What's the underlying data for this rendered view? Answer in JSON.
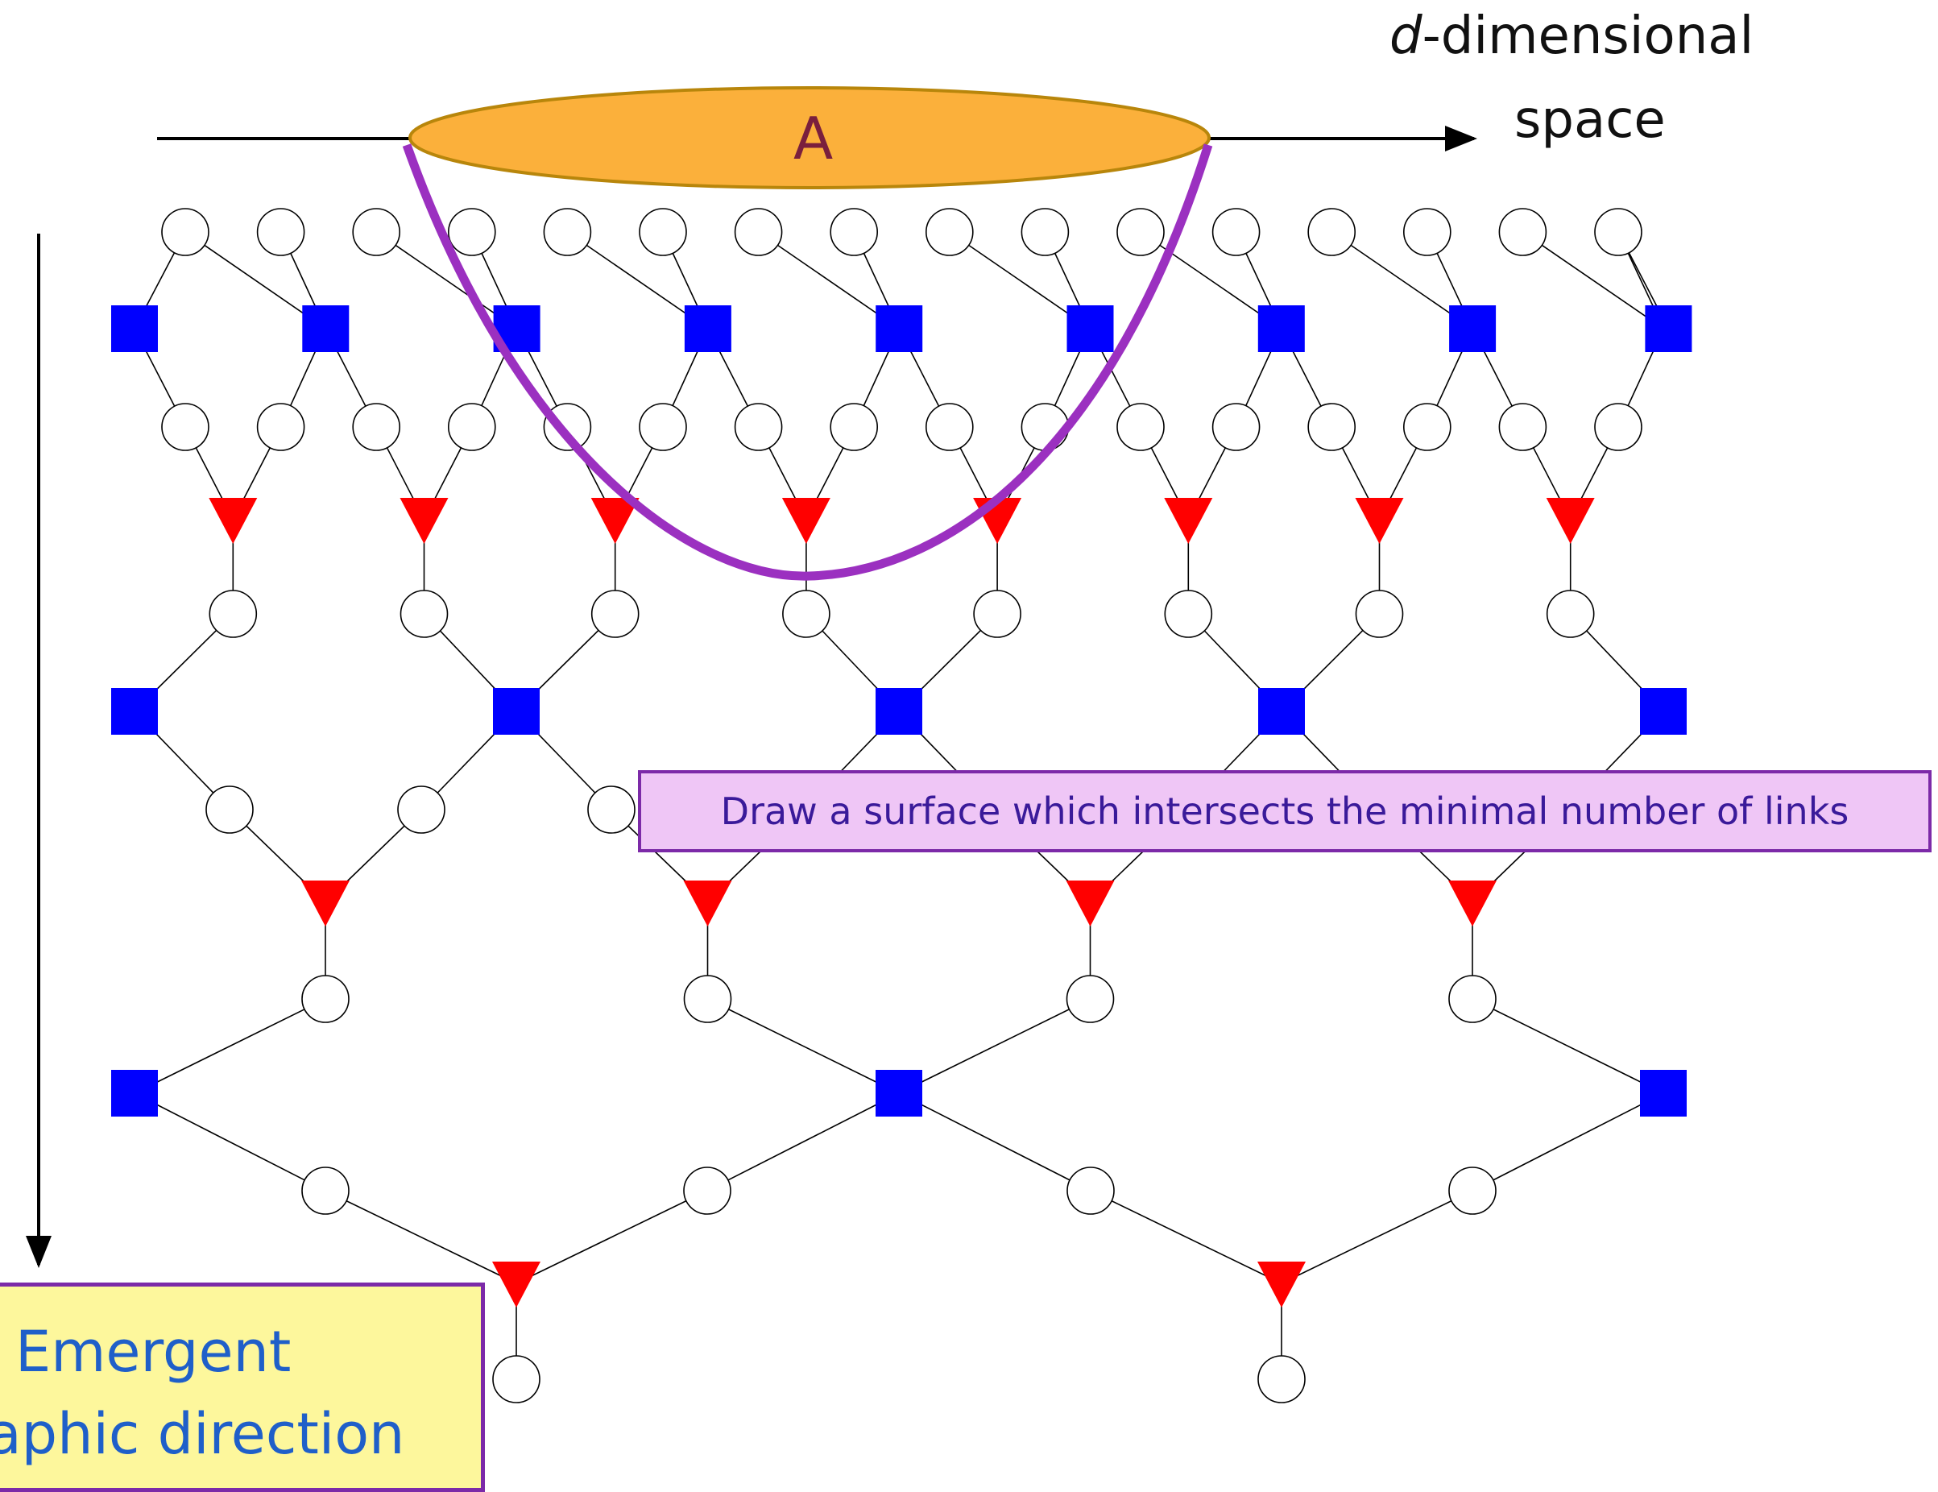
{
  "labels": {
    "dim_italic": "d",
    "dim_rest": "-dimensional",
    "space": "space",
    "region": "A",
    "surface_note": "Draw a surface which intersects the minimal number of links",
    "holographic_line1": "Emergent",
    "holographic_line2": "raphic direction"
  },
  "colors": {
    "isometry": "#0000ff",
    "disentangler": "#ff0000",
    "node": "#ffffff",
    "region": "#fbb03b",
    "surface": "#9b30c0",
    "line": "#000000"
  },
  "icons": {
    "isometry": "blue-square",
    "disentangler": "red-triangle",
    "node": "white-circle"
  }
}
